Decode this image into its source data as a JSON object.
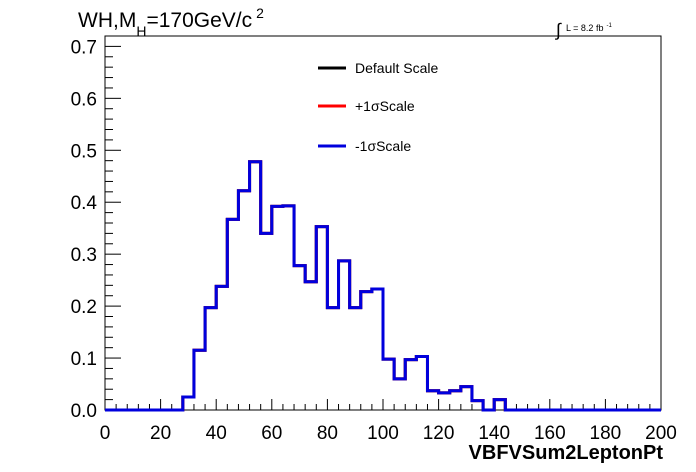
{
  "chart_data": {
    "type": "line",
    "title_main": "WH,M",
    "title_sub": "H",
    "title_value": "=170GeV/c",
    "title_sup": "2",
    "lumi_integral": "∫",
    "lumi_text": "L = 8.2 fb",
    "lumi_sup": "-1",
    "xlabel": "VBFVSum2LeptonPt",
    "xlim": [
      0,
      200
    ],
    "ylim": [
      0,
      0.72
    ],
    "x_ticks": [
      0,
      20,
      40,
      60,
      80,
      100,
      120,
      140,
      160,
      180,
      200
    ],
    "x_tick_labels": [
      "0",
      "20",
      "40",
      "60",
      "80",
      "100",
      "120",
      "140",
      "160",
      "180",
      "200"
    ],
    "y_ticks": [
      0,
      0.1,
      0.2,
      0.3,
      0.4,
      0.5,
      0.6,
      0.7
    ],
    "y_tick_labels": [
      "0.0",
      "0.1",
      "0.2",
      "0.3",
      "0.4",
      "0.5",
      "0.6",
      "0.7"
    ],
    "bin_width": 4,
    "x": [
      0,
      4,
      8,
      12,
      16,
      20,
      24,
      28,
      32,
      36,
      40,
      44,
      48,
      52,
      56,
      60,
      64,
      68,
      72,
      76,
      80,
      84,
      88,
      92,
      96,
      100,
      104,
      108,
      112,
      116,
      120,
      124,
      128,
      132,
      136,
      140,
      144,
      148,
      152,
      156,
      160,
      164,
      168,
      172,
      176,
      180,
      184,
      188,
      192,
      196
    ],
    "legend_position": "top-center",
    "series": [
      {
        "name": "Default Scale",
        "color": "#000000",
        "values": [
          0,
          0,
          0,
          0,
          0,
          0,
          0,
          0.025,
          0.115,
          0.197,
          0.238,
          0.367,
          0.422,
          0.478,
          0.34,
          0.392,
          0.393,
          0.278,
          0.247,
          0.353,
          0.197,
          0.287,
          0.197,
          0.228,
          0.233,
          0.098,
          0.06,
          0.097,
          0.103,
          0.037,
          0.033,
          0.037,
          0.045,
          0.018,
          0.0,
          0.02,
          0,
          0,
          0,
          0,
          0,
          0,
          0,
          0,
          0,
          0,
          0,
          0,
          0,
          0
        ]
      },
      {
        "name": "+1σScale",
        "color": "#ff0000",
        "values": [
          0,
          0,
          0,
          0,
          0,
          0,
          0,
          0.025,
          0.115,
          0.197,
          0.238,
          0.367,
          0.422,
          0.478,
          0.34,
          0.392,
          0.393,
          0.278,
          0.247,
          0.353,
          0.197,
          0.287,
          0.197,
          0.228,
          0.233,
          0.098,
          0.06,
          0.097,
          0.103,
          0.037,
          0.033,
          0.037,
          0.045,
          0.018,
          0.0,
          0.02,
          0,
          0,
          0,
          0,
          0,
          0,
          0,
          0,
          0,
          0,
          0,
          0,
          0,
          0
        ]
      },
      {
        "name": "-1σScale",
        "color": "#0000dd",
        "values": [
          0,
          0,
          0,
          0,
          0,
          0,
          0,
          0.025,
          0.115,
          0.197,
          0.238,
          0.367,
          0.422,
          0.478,
          0.34,
          0.392,
          0.393,
          0.278,
          0.247,
          0.353,
          0.197,
          0.287,
          0.197,
          0.228,
          0.233,
          0.098,
          0.06,
          0.097,
          0.103,
          0.037,
          0.033,
          0.037,
          0.045,
          0.018,
          0.0,
          0.02,
          0,
          0,
          0,
          0,
          0,
          0,
          0,
          0,
          0,
          0,
          0,
          0,
          0,
          0
        ]
      }
    ]
  }
}
